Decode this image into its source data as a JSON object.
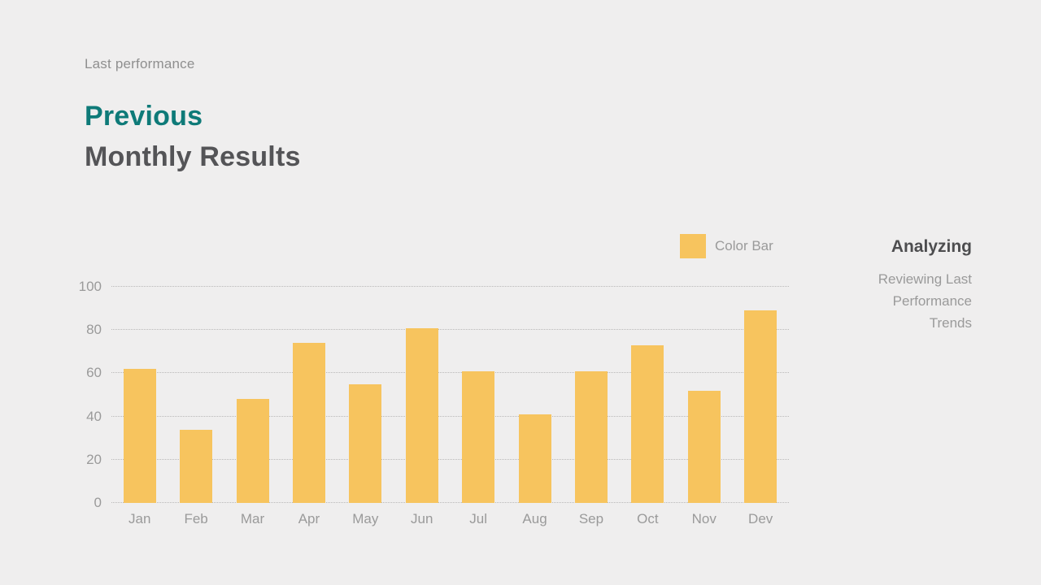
{
  "page": {
    "background": "#efeeee"
  },
  "header": {
    "eyebrow": "Last performance",
    "title_line1": "Previous",
    "title_line2": "Monthly Results"
  },
  "legend": {
    "label": "Color Bar",
    "swatch_color": "#f7c45e"
  },
  "aside": {
    "title": "Analyzing",
    "lines": [
      "Reviewing Last",
      "Performance",
      "Trends"
    ]
  },
  "colors": {
    "bar": "#f7c45e",
    "accent_teal": "#0e7a78",
    "title_dark": "#545457",
    "muted_text": "#9a9a9a",
    "background": "#efeeee"
  },
  "chart_data": {
    "type": "bar",
    "categories": [
      "Jan",
      "Feb",
      "Mar",
      "Apr",
      "May",
      "Jun",
      "Jul",
      "Aug",
      "Sep",
      "Oct",
      "Nov",
      "Dev"
    ],
    "values": [
      62,
      34,
      48,
      74,
      55,
      81,
      61,
      41,
      61,
      73,
      52,
      89
    ],
    "title": "",
    "xlabel": "",
    "ylabel": "",
    "ylim": [
      0,
      100
    ],
    "yticks": [
      0,
      20,
      40,
      60,
      80,
      100
    ],
    "grid": "horizontal-dotted",
    "legend_entries": [
      {
        "label": "Color Bar",
        "color": "#f7c45e"
      }
    ],
    "legend_position": "top-right",
    "bar_color": "#f7c45e"
  }
}
